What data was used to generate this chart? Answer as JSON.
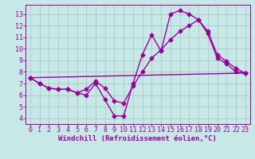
{
  "background_color": "#c8e8e8",
  "grid_color": "#a8c8c8",
  "line_color": "#990099",
  "marker": "D",
  "markersize": 2.5,
  "linewidth": 1.0,
  "xlabel": "Windchill (Refroidissement éolien,°C)",
  "xlabel_fontsize": 6.5,
  "tick_fontsize": 6.0,
  "xlim": [
    -0.5,
    23.5
  ],
  "ylim": [
    3.5,
    13.8
  ],
  "yticks": [
    4,
    5,
    6,
    7,
    8,
    9,
    10,
    11,
    12,
    13
  ],
  "xticks": [
    0,
    1,
    2,
    3,
    4,
    5,
    6,
    7,
    8,
    9,
    10,
    11,
    12,
    13,
    14,
    15,
    16,
    17,
    18,
    19,
    20,
    21,
    22,
    23
  ],
  "line1_x": [
    0,
    1,
    2,
    3,
    4,
    5,
    6,
    7,
    8,
    9,
    10,
    11,
    12,
    13,
    14,
    15,
    16,
    17,
    18,
    19,
    20,
    21,
    22,
    23
  ],
  "line1_y": [
    7.5,
    7.0,
    6.6,
    6.5,
    6.5,
    6.2,
    6.0,
    7.0,
    5.6,
    4.2,
    4.2,
    7.0,
    9.5,
    11.2,
    9.8,
    13.0,
    13.3,
    13.0,
    12.5,
    11.3,
    9.2,
    8.7,
    8.0,
    7.9
  ],
  "line2_x": [
    0,
    1,
    2,
    3,
    4,
    5,
    6,
    7,
    8,
    9,
    10,
    11,
    12,
    13,
    14,
    15,
    16,
    17,
    18,
    19,
    20,
    21,
    22,
    23
  ],
  "line2_y": [
    7.5,
    7.0,
    6.6,
    6.5,
    6.5,
    6.2,
    6.5,
    7.2,
    6.6,
    5.5,
    5.3,
    6.8,
    8.0,
    9.2,
    9.9,
    10.8,
    11.5,
    12.0,
    12.5,
    11.5,
    9.5,
    8.9,
    8.3,
    7.9
  ],
  "line3_x": [
    0,
    23
  ],
  "line3_y": [
    7.5,
    7.9
  ]
}
